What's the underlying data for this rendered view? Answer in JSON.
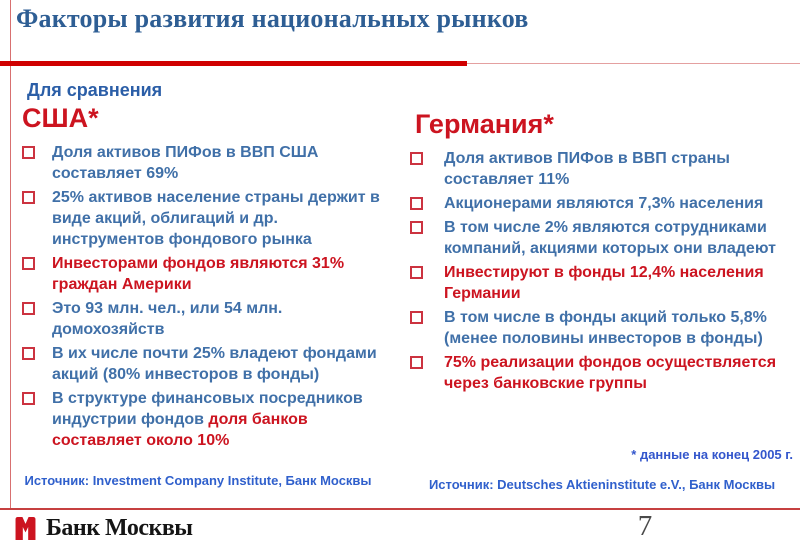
{
  "slide": {
    "title": "Факторы развития национальных рынков",
    "subtitle": "Для сравнения",
    "footnote": "* данные на конец 2005 г.",
    "page_number": "7",
    "logo_text": "Банк Москвы"
  },
  "colors": {
    "title_blue": "#2E5E94",
    "body_blue": "#4070A8",
    "red": "#CC1420",
    "source_blue": "#3060CC",
    "line_red": "#D00000"
  },
  "columns": [
    {
      "header": "США*",
      "items": [
        {
          "parts": [
            {
              "text": "Доля активов ПИФов в ВВП США составляет 69%",
              "color": "blue"
            }
          ]
        },
        {
          "parts": [
            {
              "text": "25% активов население страны держит в виде акций, облигаций и др. инструментов фондового рынка",
              "color": "blue"
            }
          ]
        },
        {
          "parts": [
            {
              "text": "Инвесторами фондов являются 31% граждан Америки",
              "color": "red"
            }
          ]
        },
        {
          "parts": [
            {
              "text": "Это 93 млн. чел., или 54 млн. домохозяйств",
              "color": "blue"
            }
          ]
        },
        {
          "parts": [
            {
              "text": "В их числе почти 25% владеют фондами акций (80% инвесторов в фонды)",
              "color": "blue"
            }
          ]
        },
        {
          "parts": [
            {
              "text": "В структуре финансовых посредников индустрии фондов ",
              "color": "blue"
            },
            {
              "text": "доля банков составляет около 10%",
              "color": "red"
            }
          ]
        }
      ],
      "source": "Источник: Investment Company Institute, Банк Москвы"
    },
    {
      "header": "Германия*",
      "items": [
        {
          "parts": [
            {
              "text": "Доля активов ПИФов в ВВП страны составляет 11%",
              "color": "blue"
            }
          ]
        },
        {
          "parts": [
            {
              "text": "Акционерами являются 7,3% населения",
              "color": "blue"
            }
          ]
        },
        {
          "parts": [
            {
              "text": "В том числе 2% являются сотрудниками компаний, акциями которых они владеют",
              "color": "blue"
            }
          ]
        },
        {
          "parts": [
            {
              "text": "Инвестируют в фонды 12,4% населения Германии",
              "color": "red"
            }
          ]
        },
        {
          "parts": [
            {
              "text": "В том числе в фонды акций только 5,8% (менее половины инвесторов в фонды)",
              "color": "blue"
            }
          ]
        },
        {
          "parts": [
            {
              "text": "75% реализации фондов осуществляется через банковские группы",
              "color": "red"
            }
          ]
        }
      ],
      "source": "Источник: Deutsches Aktieninstitute e.V., Банк Москвы"
    }
  ]
}
